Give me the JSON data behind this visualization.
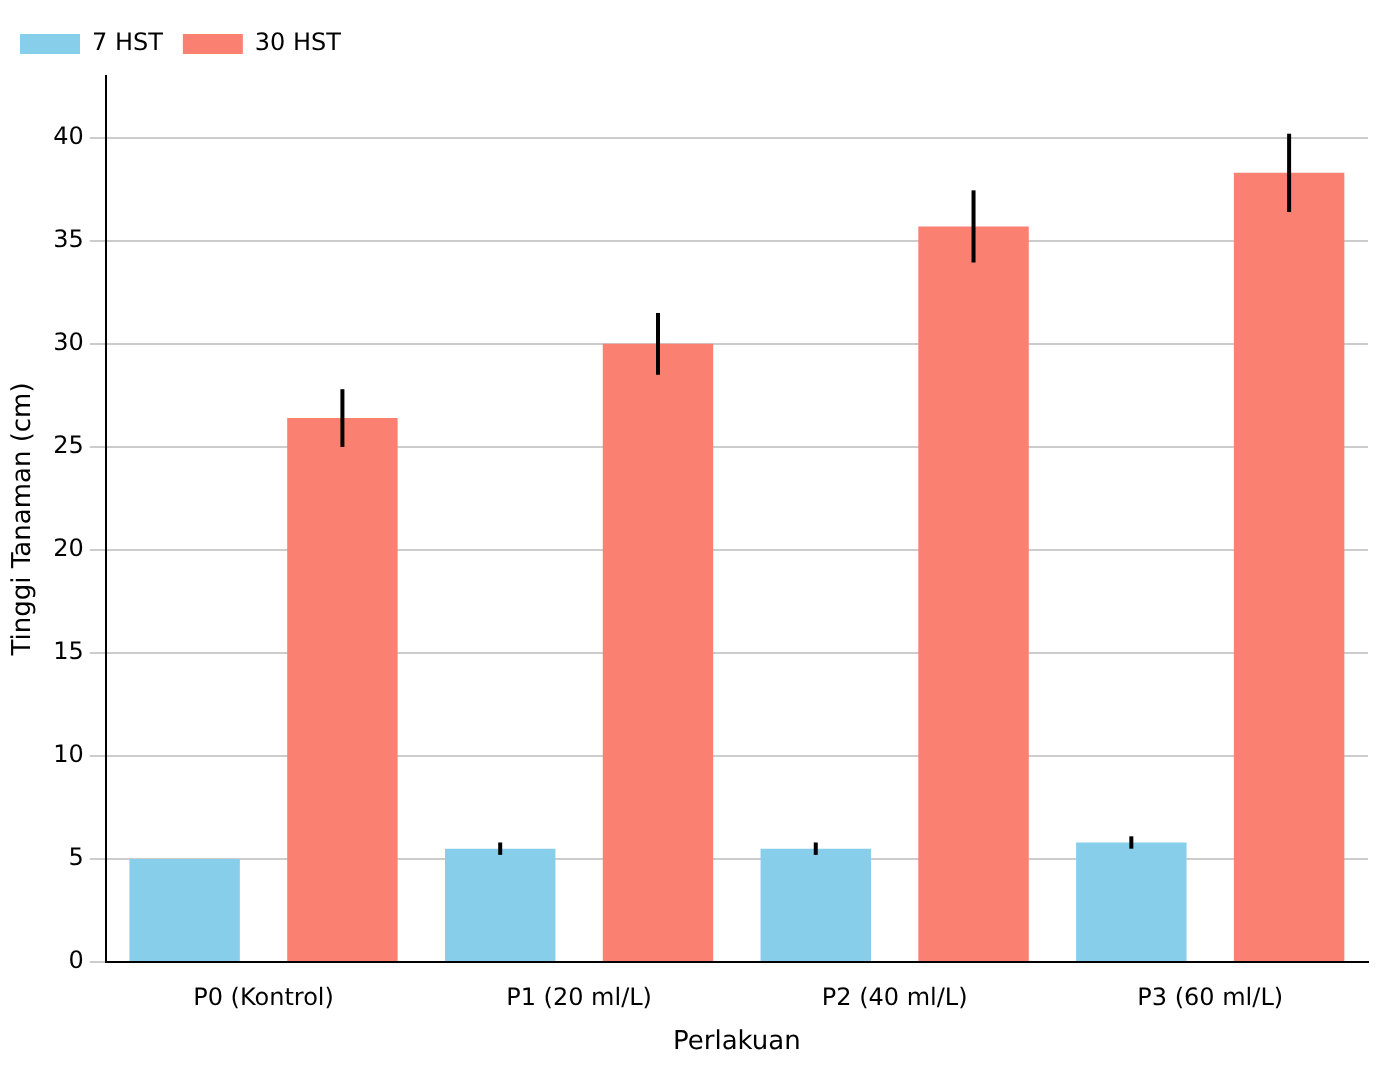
{
  "chart_data": {
    "type": "bar",
    "xlabel": "Perlakuan",
    "ylabel": "Tinggi Tanaman (cm)",
    "categories": [
      "P0 (Kontrol)",
      "P1 (20 ml/L)",
      "P2 (40 ml/L)",
      "P3 (60 ml/L)"
    ],
    "series": [
      {
        "name": "7 HST",
        "color": "#87ceeb",
        "values": [
          5.0,
          5.5,
          5.5,
          5.8
        ],
        "errors": [
          null,
          0.3,
          0.3,
          0.3
        ]
      },
      {
        "name": "30 HST",
        "color": "#fa8072",
        "values": [
          26.4,
          30.0,
          35.7,
          38.3
        ],
        "errors": [
          1.4,
          1.5,
          1.75,
          1.9
        ]
      }
    ],
    "ylim": [
      0,
      43
    ],
    "yticks": [
      0,
      5,
      10,
      15,
      20,
      25,
      30,
      35,
      40
    ],
    "grid": "y",
    "legend": "top left"
  }
}
